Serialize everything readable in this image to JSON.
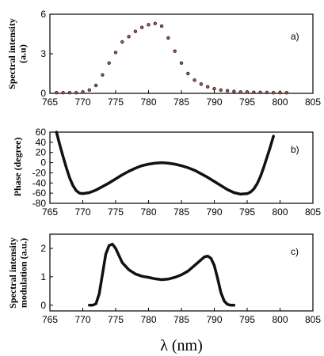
{
  "chart_data": [
    {
      "type": "scatter",
      "panel_label": "a)",
      "ylabel_lines": [
        "Spectral intensity",
        "(a.u)"
      ],
      "xlim": [
        765,
        805
      ],
      "ylim": [
        0,
        6
      ],
      "xticks": [
        765,
        770,
        775,
        780,
        785,
        790,
        795,
        800,
        805
      ],
      "yticks": [
        0,
        3,
        6
      ],
      "series": [
        {
          "x": [
            766,
            767,
            768,
            769,
            770,
            771,
            772,
            773,
            774,
            775,
            776,
            777,
            778,
            779,
            780,
            781,
            782,
            783,
            784,
            785,
            786,
            787,
            788,
            789,
            790,
            791,
            792,
            793,
            794,
            795,
            796,
            797,
            798,
            799,
            800,
            801
          ],
          "y": [
            0.05,
            0.05,
            0.05,
            0.05,
            0.1,
            0.25,
            0.6,
            1.4,
            2.3,
            3.1,
            3.9,
            4.3,
            4.7,
            5.0,
            5.2,
            5.3,
            5.1,
            4.2,
            3.2,
            2.3,
            1.5,
            1.0,
            0.7,
            0.5,
            0.35,
            0.25,
            0.2,
            0.15,
            0.1,
            0.1,
            0.08,
            0.07,
            0.06,
            0.05,
            0.05,
            0.05
          ]
        }
      ],
      "colors": {
        "edge": "#1a1a1a",
        "face": "#c0504d"
      }
    },
    {
      "type": "line",
      "panel_label": "b)",
      "ylabel_lines": [
        "Phase (degree)"
      ],
      "xlim": [
        765,
        805
      ],
      "ylim": [
        -80,
        60
      ],
      "xticks": [
        765,
        770,
        775,
        780,
        785,
        790,
        795,
        800,
        805
      ],
      "yticks": [
        60,
        40,
        20,
        0,
        -20,
        -40,
        -60,
        -80
      ],
      "series": [
        {
          "x": [
            766,
            766.5,
            767,
            767.5,
            768,
            768.5,
            769,
            769.5,
            770,
            771,
            772,
            773,
            774,
            775,
            776,
            777,
            778,
            779,
            780,
            781,
            782,
            783,
            784,
            785,
            786,
            787,
            788,
            789,
            790,
            791,
            792,
            793,
            794,
            795,
            795.5,
            796,
            796.5,
            797,
            797.5,
            798,
            798.5,
            799
          ],
          "y": [
            60,
            35,
            12,
            -10,
            -30,
            -45,
            -55,
            -60,
            -61,
            -59,
            -54,
            -47,
            -40,
            -32,
            -24,
            -17,
            -11,
            -6,
            -3,
            -1,
            0,
            -1,
            -3,
            -6,
            -10,
            -15,
            -22,
            -29,
            -37,
            -45,
            -53,
            -59,
            -62,
            -61,
            -58,
            -52,
            -42,
            -28,
            -10,
            10,
            30,
            52
          ]
        }
      ],
      "colors": {
        "line": "#111111"
      }
    },
    {
      "type": "line",
      "panel_label": "c)",
      "ylabel_lines": [
        "Spectral intensity",
        "modulation (a.u.)"
      ],
      "xlim": [
        765,
        805
      ],
      "ylim": [
        -0.2,
        2.5
      ],
      "xticks": [
        765,
        770,
        775,
        780,
        785,
        790,
        795,
        800,
        805
      ],
      "yticks": [
        0,
        1,
        2
      ],
      "xlabel": "λ (nm)",
      "series": [
        {
          "x": [
            771,
            771.5,
            772,
            772.5,
            773,
            773.5,
            774,
            774.5,
            775,
            775.5,
            776,
            777,
            778,
            779,
            780,
            781,
            782,
            783,
            784,
            785,
            786,
            787,
            788,
            788.5,
            789,
            789.5,
            790,
            790.5,
            791,
            791.5,
            792,
            792.5,
            793
          ],
          "y": [
            0,
            0,
            0.05,
            0.4,
            1.1,
            1.8,
            2.1,
            2.15,
            2.0,
            1.75,
            1.5,
            1.25,
            1.1,
            1.02,
            0.98,
            0.93,
            0.9,
            0.92,
            0.98,
            1.07,
            1.2,
            1.4,
            1.6,
            1.7,
            1.73,
            1.65,
            1.4,
            0.95,
            0.45,
            0.15,
            0.03,
            0,
            0
          ]
        }
      ],
      "colors": {
        "line": "#111111"
      }
    }
  ]
}
